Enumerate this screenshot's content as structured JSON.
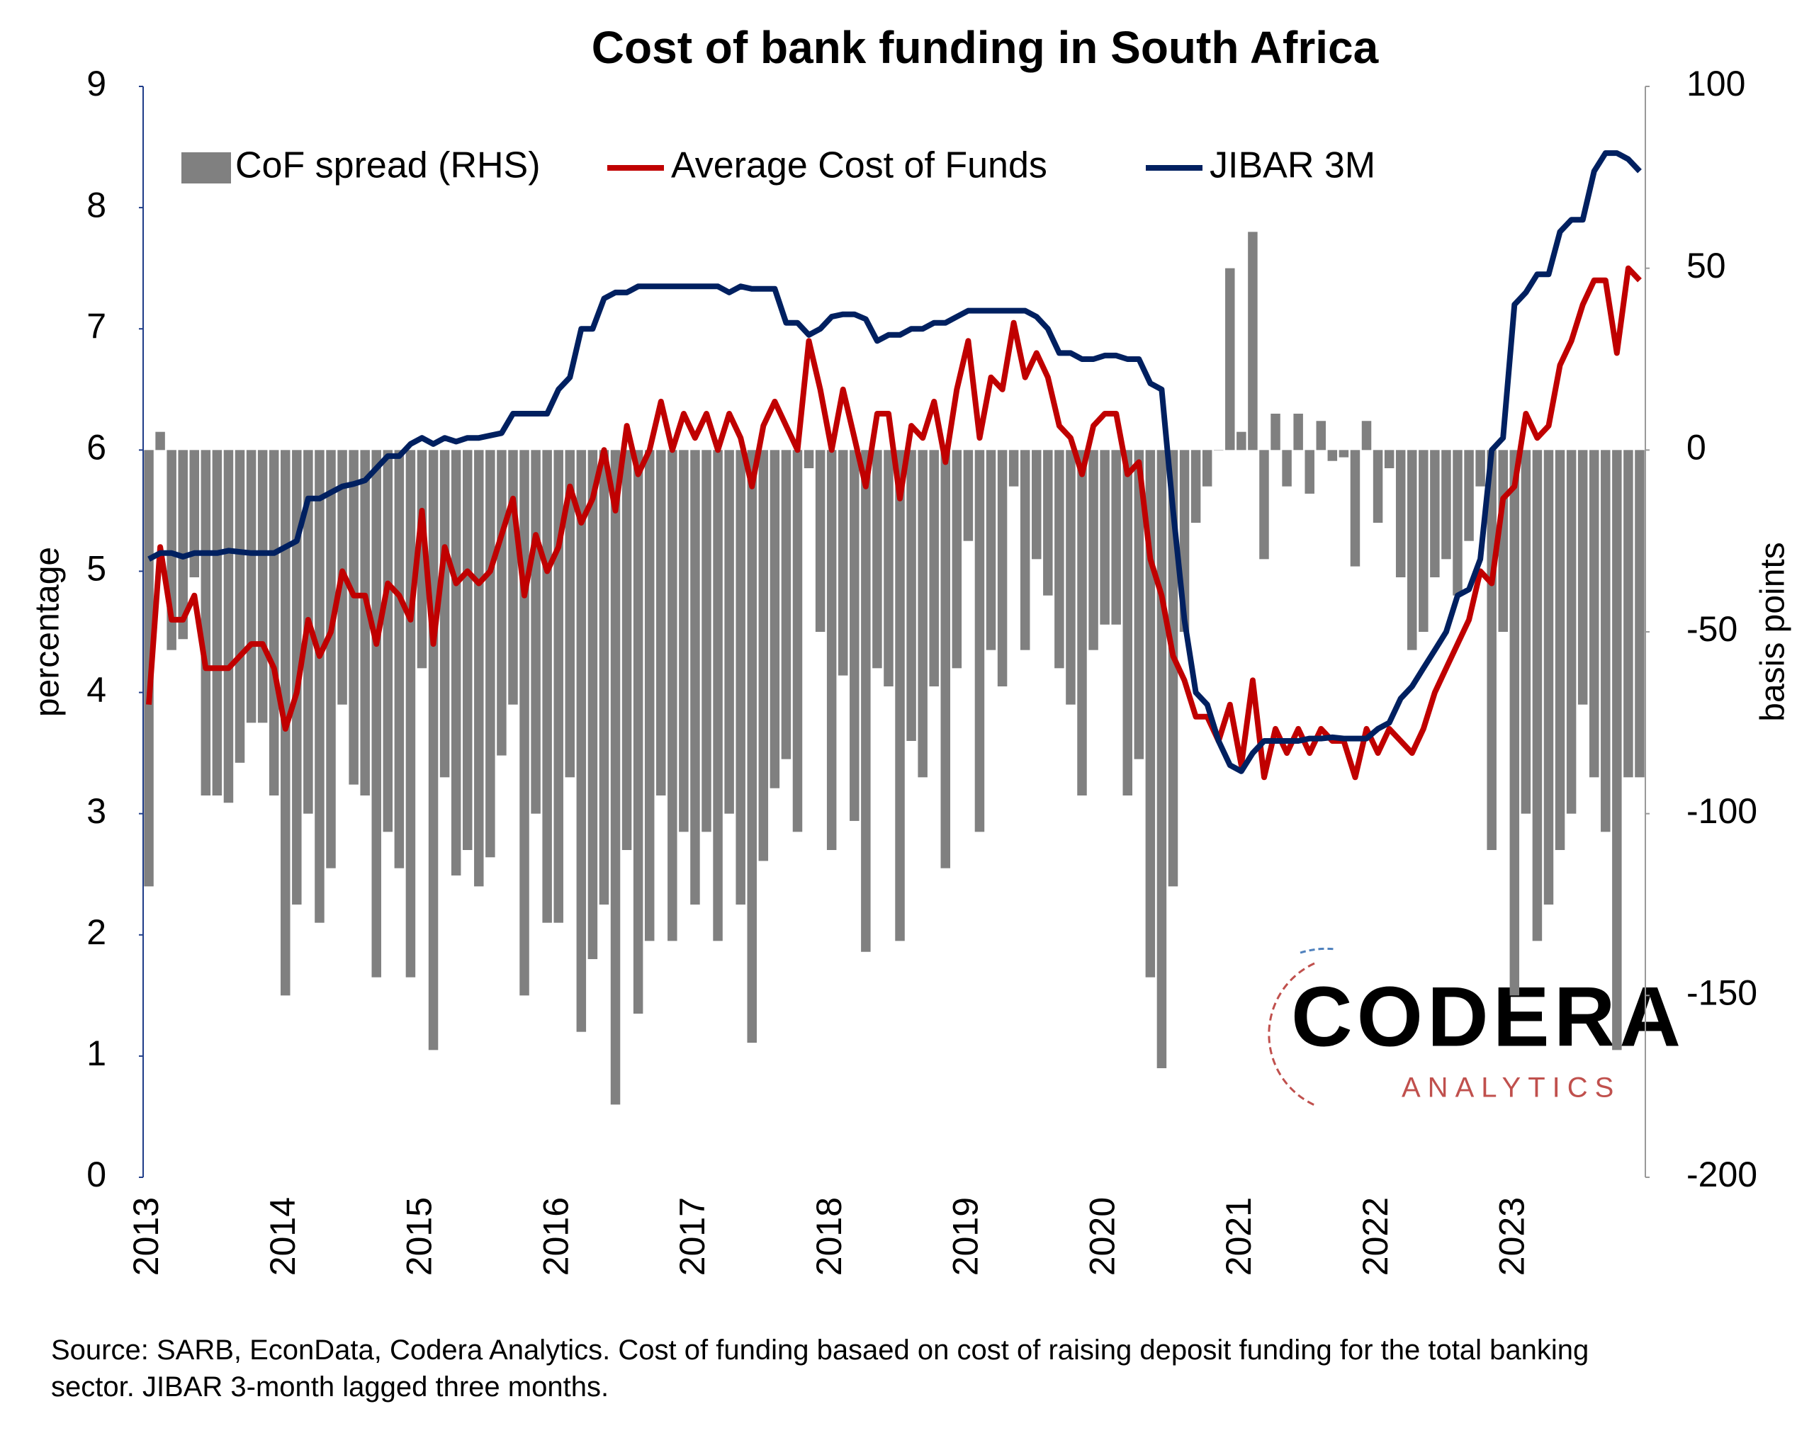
{
  "chart_data": {
    "type": "bar-line",
    "title": "Cost of bank funding in South Africa",
    "y_label": "percentage",
    "y2_label": "basis points",
    "note": "Source: SARB, EconData, Codera Analytics. Cost of funding basaed on cost of raising deposit funding for the total banking sector. JIBAR 3-month lagged three months.",
    "logo": {
      "name": "CODERA",
      "tagline": "ANALYTICS"
    },
    "legend": "top",
    "categories": [
      "2013",
      null,
      null,
      null,
      null,
      null,
      null,
      null,
      null,
      null,
      null,
      null,
      "2014",
      null,
      null,
      null,
      null,
      null,
      null,
      null,
      null,
      null,
      null,
      null,
      "2015",
      null,
      null,
      null,
      null,
      null,
      null,
      null,
      null,
      null,
      null,
      null,
      "2016",
      null,
      null,
      null,
      null,
      null,
      null,
      null,
      null,
      null,
      null,
      null,
      "2017",
      null,
      null,
      null,
      null,
      null,
      null,
      null,
      null,
      null,
      null,
      null,
      "2018",
      null,
      null,
      null,
      null,
      null,
      null,
      null,
      null,
      null,
      null,
      null,
      "2019",
      null,
      null,
      null,
      null,
      null,
      null,
      null,
      null,
      null,
      null,
      null,
      "2020",
      null,
      null,
      null,
      null,
      null,
      null,
      null,
      null,
      null,
      null,
      null,
      "2021",
      null,
      null,
      null,
      null,
      null,
      null,
      null,
      null,
      null,
      null,
      null,
      "2022",
      null,
      null,
      null,
      null,
      null,
      null,
      null,
      null,
      null,
      null,
      null,
      "2023",
      null,
      null,
      null,
      null,
      null,
      null,
      null,
      null,
      null,
      null,
      null
    ],
    "series": [
      {
        "name": "CoF spread (RHS)",
        "kind": "bar",
        "axis": "y2",
        "color": "#808080",
        "values": [
          -120,
          5,
          -55,
          -52,
          -35,
          -95,
          -95,
          -97,
          -86,
          -75,
          -75,
          -95,
          -150,
          -125,
          -100,
          -130,
          -115,
          -70,
          -92,
          -95,
          -145,
          -105,
          -115,
          -145,
          -60,
          -165,
          -90,
          -117,
          -110,
          -120,
          -112,
          -84,
          -70,
          -150,
          -100,
          -130,
          -130,
          -90,
          -160,
          -140,
          -125,
          -180,
          -110,
          -155,
          -135,
          -95,
          -135,
          -105,
          -125,
          -105,
          -135,
          -100,
          -125,
          -163,
          -113,
          -93,
          -85,
          -105,
          -5,
          -50,
          -110,
          -62,
          -102,
          -138,
          -60,
          -65,
          -135,
          -80,
          -90,
          -65,
          -115,
          -60,
          -25,
          -105,
          -55,
          -65,
          -10,
          -55,
          -30,
          -40,
          -60,
          -70,
          -95,
          -55,
          -48,
          -48,
          -95,
          -85,
          -145,
          -170,
          -120,
          -50,
          -20,
          -10,
          0,
          50,
          5,
          60,
          -30,
          10,
          -10,
          10,
          -12,
          8,
          -3,
          -2,
          -32,
          8,
          -20,
          -5,
          -35,
          -55,
          -50,
          -35,
          -30,
          -40,
          -25,
          -10,
          -110,
          -50,
          -150,
          -100,
          -135,
          -125,
          -110,
          -100,
          -70,
          -90,
          -105,
          -165,
          -90,
          -90
        ]
      },
      {
        "name": "Average Cost of Funds",
        "kind": "line",
        "color": "#c00000",
        "values": [
          3.9,
          5.2,
          4.6,
          4.6,
          4.8,
          4.2,
          4.2,
          4.2,
          4.3,
          4.4,
          4.4,
          4.2,
          3.7,
          4.0,
          4.6,
          4.3,
          4.5,
          5.0,
          4.8,
          4.8,
          4.4,
          4.9,
          4.8,
          4.6,
          5.5,
          4.4,
          5.2,
          4.9,
          5.0,
          4.9,
          5.0,
          5.3,
          5.6,
          4.8,
          5.3,
          5.0,
          5.2,
          5.7,
          5.4,
          5.6,
          6.0,
          5.5,
          6.2,
          5.8,
          6.0,
          6.4,
          6.0,
          6.3,
          6.1,
          6.3,
          6.0,
          6.3,
          6.1,
          5.7,
          6.2,
          6.4,
          6.2,
          6.0,
          6.9,
          6.5,
          6.0,
          6.5,
          6.1,
          5.7,
          6.3,
          6.3,
          5.6,
          6.2,
          6.1,
          6.4,
          5.9,
          6.5,
          6.9,
          6.1,
          6.6,
          6.5,
          7.05,
          6.6,
          6.8,
          6.6,
          6.2,
          6.1,
          5.8,
          6.2,
          6.3,
          6.3,
          5.8,
          5.9,
          5.1,
          4.8,
          4.3,
          4.1,
          3.8,
          3.8,
          3.6,
          3.9,
          3.4,
          4.1,
          3.3,
          3.7,
          3.5,
          3.7,
          3.5,
          3.7,
          3.6,
          3.6,
          3.3,
          3.7,
          3.5,
          3.7,
          3.6,
          3.5,
          3.7,
          4.0,
          4.2,
          4.4,
          4.6,
          5.0,
          4.9,
          5.6,
          5.7,
          6.3,
          6.1,
          6.2,
          6.7,
          6.9,
          7.2,
          7.4,
          7.4,
          6.8,
          7.5,
          7.4
        ]
      },
      {
        "name": "JIBAR 3M",
        "kind": "line",
        "color": "#002060",
        "values": [
          5.1,
          5.15,
          5.15,
          5.12,
          5.15,
          5.15,
          5.15,
          5.17,
          5.16,
          5.15,
          5.15,
          5.15,
          5.2,
          5.25,
          5.6,
          5.6,
          5.65,
          5.7,
          5.72,
          5.75,
          5.85,
          5.95,
          5.95,
          6.05,
          6.1,
          6.05,
          6.1,
          6.07,
          6.1,
          6.1,
          6.12,
          6.14,
          6.3,
          6.3,
          6.3,
          6.3,
          6.5,
          6.6,
          7.0,
          7.0,
          7.25,
          7.3,
          7.3,
          7.35,
          7.35,
          7.35,
          7.35,
          7.35,
          7.35,
          7.35,
          7.35,
          7.3,
          7.35,
          7.33,
          7.33,
          7.33,
          7.05,
          7.05,
          6.95,
          7.0,
          7.1,
          7.12,
          7.12,
          7.08,
          6.9,
          6.95,
          6.95,
          7.0,
          7.0,
          7.05,
          7.05,
          7.1,
          7.15,
          7.15,
          7.15,
          7.15,
          7.15,
          7.15,
          7.1,
          7.0,
          6.8,
          6.8,
          6.75,
          6.75,
          6.78,
          6.78,
          6.75,
          6.75,
          6.55,
          6.5,
          5.5,
          4.6,
          4.0,
          3.9,
          3.6,
          3.4,
          3.35,
          3.5,
          3.6,
          3.6,
          3.6,
          3.6,
          3.62,
          3.62,
          3.63,
          3.62,
          3.62,
          3.62,
          3.7,
          3.75,
          3.95,
          4.05,
          4.2,
          4.35,
          4.5,
          4.8,
          4.85,
          5.1,
          6.0,
          6.1,
          7.2,
          7.3,
          7.45,
          7.45,
          7.8,
          7.9,
          7.9,
          8.3,
          8.45,
          8.45,
          8.4,
          8.3
        ]
      }
    ],
    "ylim": [
      0,
      9
    ],
    "yticks": [
      0,
      1,
      2,
      3,
      4,
      5,
      6,
      7,
      8,
      9
    ],
    "y2lim": [
      -200,
      100
    ],
    "y2ticks": [
      -200,
      -150,
      -100,
      -50,
      0,
      50,
      100
    ],
    "grid": false
  }
}
